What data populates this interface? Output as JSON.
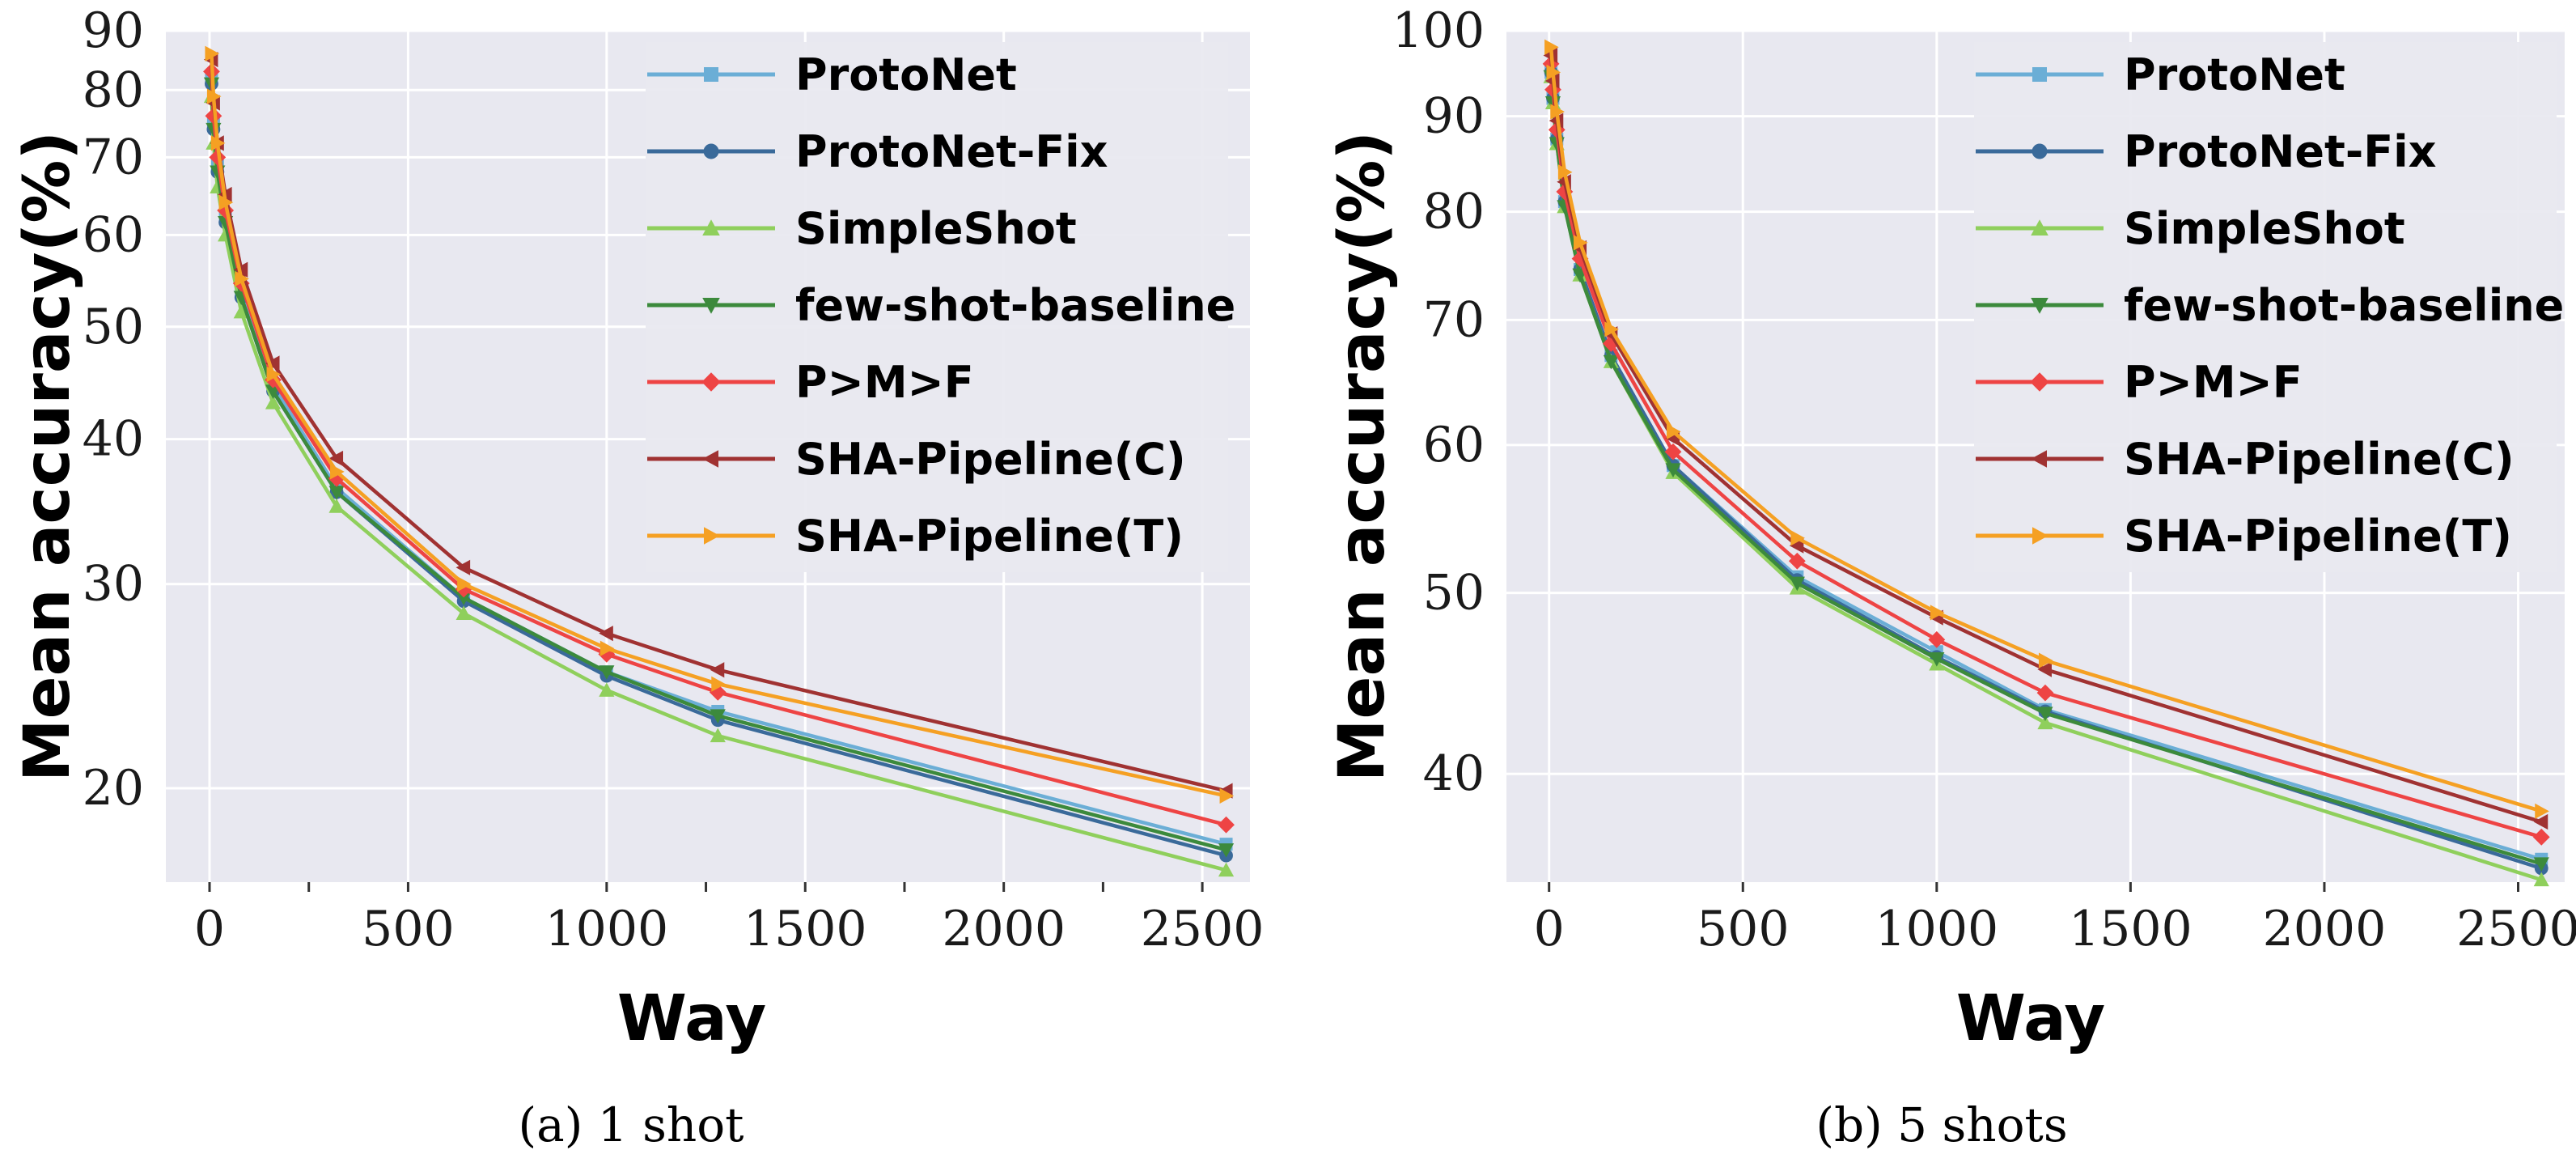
{
  "chart_data": [
    {
      "type": "line",
      "caption": "(a)  1 shot",
      "xlabel": "Way",
      "ylabel": "Mean accuracy(%)",
      "y_scale": "log",
      "xlim": [
        -110,
        2620
      ],
      "ylim": [
        16.6,
        90
      ],
      "xticks": [
        0,
        500,
        1000,
        1500,
        2000,
        2500
      ],
      "xtick_labels": [
        "0",
        "500",
        "1000",
        "1500",
        "2000",
        "2500"
      ],
      "yticks": [
        20,
        30,
        40,
        50,
        60,
        70,
        80,
        90
      ],
      "ytick_labels": [
        "20",
        "30",
        "40",
        "50",
        "60",
        "70",
        "80",
        "90"
      ],
      "grid": true,
      "background": "#e8e8f0",
      "legend_position": "top-right",
      "x": [
        5,
        10,
        20,
        40,
        80,
        160,
        320,
        640,
        1000,
        1280,
        2560
      ],
      "series": [
        {
          "name": "ProtoNet",
          "color": "#6baed6",
          "marker": "square",
          "values": [
            82,
            75,
            69,
            62,
            53.5,
            44.5,
            36.3,
            29.2,
            25.2,
            23.3,
            17.9
          ]
        },
        {
          "name": "ProtoNet-Fix",
          "color": "#3a6a9a",
          "marker": "circle",
          "values": [
            81,
            74,
            68,
            61.5,
            53,
            44,
            36,
            29,
            25,
            22.9,
            17.5
          ]
        },
        {
          "name": "SimpleShot",
          "color": "#8fcf5c",
          "marker": "triangle-up",
          "values": [
            79,
            72,
            66,
            60,
            51.5,
            43,
            35,
            28.3,
            24.3,
            22.2,
            17.0
          ]
        },
        {
          "name": "few-shot-baseline",
          "color": "#3c8a3c",
          "marker": "triangle-down",
          "values": [
            81,
            74,
            68,
            61.5,
            53,
            44,
            36,
            29.2,
            25.2,
            23.1,
            17.7
          ]
        },
        {
          "name": "P>M>F",
          "color": "#ee4444",
          "marker": "diamond",
          "values": [
            83,
            76,
            70,
            63,
            54.5,
            45,
            37,
            29.7,
            26.1,
            24.2,
            18.6
          ]
        },
        {
          "name": "SHA-Pipeline(C)",
          "color": "#a03232",
          "marker": "triangle-left",
          "values": [
            85,
            78,
            72,
            65,
            56,
            46.5,
            38.5,
            31,
            27.2,
            25.3,
            19.9
          ]
        },
        {
          "name": "SHA-Pipeline(T)",
          "color": "#f5a023",
          "marker": "triangle-right",
          "values": [
            86,
            79,
            72,
            64,
            55,
            45.5,
            37.5,
            30,
            26.4,
            24.6,
            19.7
          ]
        }
      ]
    },
    {
      "type": "line",
      "caption": "(b)  5 shots",
      "xlabel": "Way",
      "ylabel": "Mean accuracy(%)",
      "y_scale": "log",
      "xlim": [
        -110,
        2620
      ],
      "ylim": [
        35,
        100
      ],
      "xticks": [
        0,
        500,
        1000,
        1500,
        2000,
        2500
      ],
      "xtick_labels": [
        "0",
        "500",
        "1000",
        "1500",
        "2000",
        "2500"
      ],
      "yticks": [
        40,
        50,
        60,
        70,
        80,
        90,
        100
      ],
      "ytick_labels": [
        "40",
        "50",
        "60",
        "70",
        "80",
        "90",
        "100"
      ],
      "grid": true,
      "background": "#e8e8f0",
      "legend_position": "top-right",
      "x": [
        5,
        10,
        20,
        40,
        80,
        160,
        320,
        640,
        1000,
        1280,
        2560
      ],
      "series": [
        {
          "name": "ProtoNet",
          "color": "#6baed6",
          "marker": "square",
          "values": [
            95,
            92,
            87.5,
            81,
            74.5,
            67,
            58.5,
            51,
            46.5,
            43.3,
            36.0
          ]
        },
        {
          "name": "ProtoNet-Fix",
          "color": "#3a6a9a",
          "marker": "circle",
          "values": [
            95,
            92,
            87.5,
            81,
            74.5,
            67,
            58.5,
            50.8,
            46.2,
            43.2,
            35.6
          ]
        },
        {
          "name": "SimpleShot",
          "color": "#8fcf5c",
          "marker": "triangle-up",
          "values": [
            94.5,
            91.5,
            87,
            80.5,
            74,
            66.5,
            58,
            50.3,
            45.8,
            42.6,
            35.1
          ]
        },
        {
          "name": "few-shot-baseline",
          "color": "#3c8a3c",
          "marker": "triangle-down",
          "values": [
            94.5,
            91.5,
            87,
            80.5,
            74,
            66.5,
            58.2,
            50.6,
            46.1,
            43.1,
            35.8
          ]
        },
        {
          "name": "P>M>F",
          "color": "#ee4444",
          "marker": "diamond",
          "values": [
            96,
            93,
            88.5,
            82,
            75.5,
            68,
            59.5,
            52,
            47.2,
            44.2,
            37.0
          ]
        },
        {
          "name": "SHA-Pipeline(C)",
          "color": "#a03232",
          "marker": "triangle-left",
          "values": [
            97,
            94,
            89.5,
            83,
            76.5,
            68.8,
            60.5,
            53,
            48.5,
            45.5,
            37.7
          ]
        },
        {
          "name": "SHA-Pipeline(T)",
          "color": "#f5a023",
          "marker": "triangle-right",
          "values": [
            98,
            95,
            90.5,
            84,
            77,
            69.2,
            61,
            53.5,
            48.8,
            46.0,
            38.2
          ]
        }
      ]
    }
  ]
}
